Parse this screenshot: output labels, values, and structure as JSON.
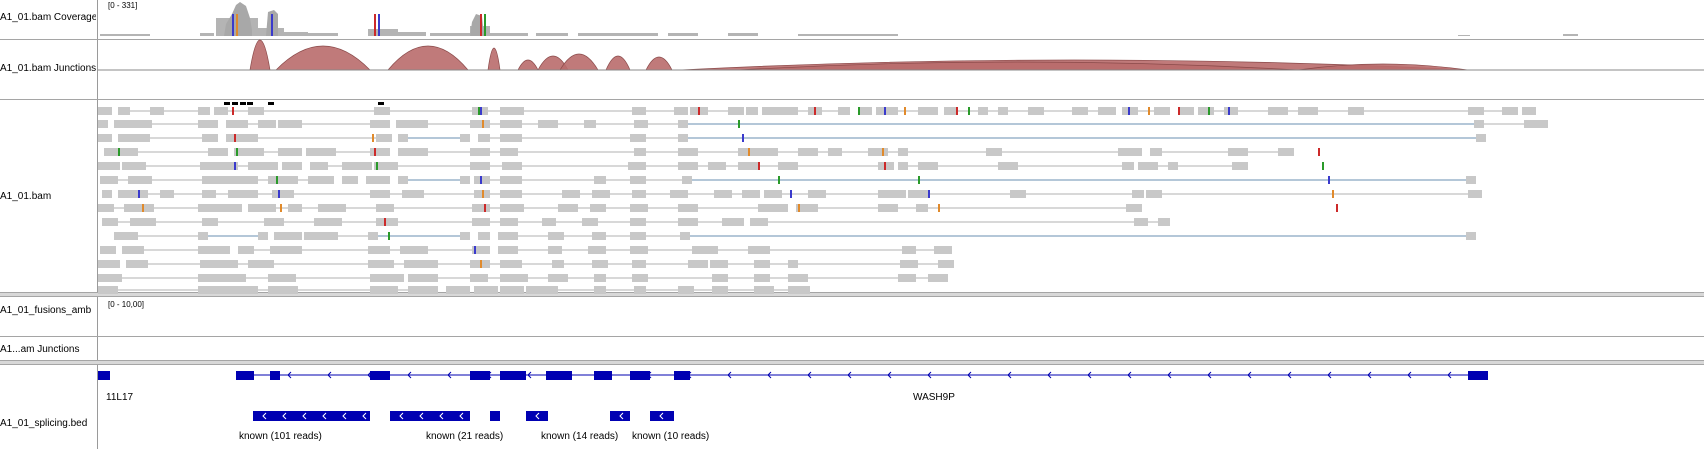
{
  "tracks": {
    "coverage_name": "A1_01.bam Coverage",
    "coverage_range": "[0 - 331]",
    "junctions_name": "A1_01.bam Junctions",
    "alignments_name": "A1_01.bam",
    "fusions_name": "A1_01_fusions_amb",
    "fusions_range": "[0 - 10,00]",
    "junctions2_name": "A1...am Junctions",
    "splicing_name": "A1_01_splicing.bed"
  },
  "genes": {
    "left_gene": "11L17",
    "main_gene": "WASH9P"
  },
  "splicing_features": [
    {
      "label": "known (101 reads)"
    },
    {
      "label": "known (21 reads)"
    },
    {
      "label": "known (14 reads)"
    },
    {
      "label": "known (10 reads)"
    }
  ],
  "colors": {
    "coverage": "#b4b4b4",
    "junction_arc": "#b96b6b",
    "read": "#c8c8c8",
    "gene": "#0000b2",
    "intron_line": "#6a8fb0"
  }
}
